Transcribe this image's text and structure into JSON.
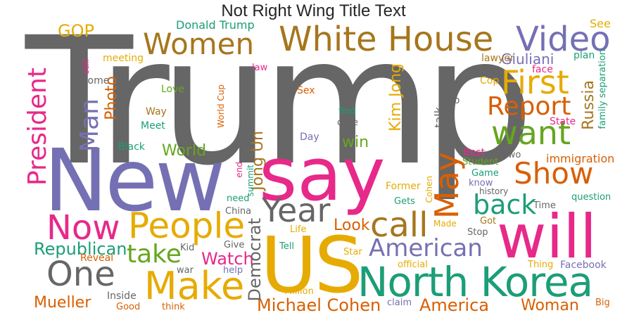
{
  "title": "Not Right Wing Title Text",
  "palette": {
    "gray": "#666666",
    "purple": "#7570b3",
    "magenta": "#e7298a",
    "gold": "#e6ab02",
    "brown": "#a6761d",
    "orange": "#d95f02",
    "teal": "#1b9e77",
    "green": "#66a61e"
  },
  "words": [
    {
      "text": "Trump",
      "color": "gray"
    },
    {
      "text": "New",
      "color": "purple"
    },
    {
      "text": "say",
      "color": "magenta"
    },
    {
      "text": "US",
      "color": "gold"
    },
    {
      "text": "will",
      "color": "magenta"
    },
    {
      "text": "North Korea",
      "color": "teal"
    },
    {
      "text": "White House",
      "color": "brown"
    },
    {
      "text": "Women",
      "color": "brown"
    },
    {
      "text": "Video",
      "color": "purple"
    },
    {
      "text": "First",
      "color": "gold"
    },
    {
      "text": "want",
      "color": "green"
    },
    {
      "text": "Report",
      "color": "orange"
    },
    {
      "text": "Show",
      "color": "orange"
    },
    {
      "text": "May",
      "color": "orange"
    },
    {
      "text": "back",
      "color": "teal"
    },
    {
      "text": "call",
      "color": "brown"
    },
    {
      "text": "Year",
      "color": "gray"
    },
    {
      "text": "People",
      "color": "gold"
    },
    {
      "text": "Now",
      "color": "magenta"
    },
    {
      "text": "Make",
      "color": "gold"
    },
    {
      "text": "One",
      "color": "gray"
    },
    {
      "text": "take",
      "color": "green"
    },
    {
      "text": "American",
      "color": "purple"
    },
    {
      "text": "President",
      "color": "magenta"
    },
    {
      "text": "Man",
      "color": "purple"
    },
    {
      "text": "Republican",
      "color": "teal"
    },
    {
      "text": "Michael Cohen",
      "color": "orange"
    },
    {
      "text": "America",
      "color": "orange"
    },
    {
      "text": "Mueller",
      "color": "orange"
    },
    {
      "text": "Woman",
      "color": "orange"
    },
    {
      "text": "Watch",
      "color": "magenta"
    },
    {
      "text": "Democrat",
      "color": "gray"
    },
    {
      "text": "GOP",
      "color": "gold"
    },
    {
      "text": "Donald Trump",
      "color": "teal"
    },
    {
      "text": "Giuliani",
      "color": "purple"
    },
    {
      "text": "Russia",
      "color": "brown"
    },
    {
      "text": "World",
      "color": "green"
    },
    {
      "text": "Jong Un",
      "color": "brown"
    },
    {
      "text": "Kim Jong",
      "color": "gold"
    },
    {
      "text": "Photo",
      "color": "orange"
    },
    {
      "text": "Look",
      "color": "orange"
    },
    {
      "text": "win",
      "color": "green"
    },
    {
      "text": "immigration",
      "color": "orange"
    },
    {
      "text": "See",
      "color": "gold"
    },
    {
      "text": "plan",
      "color": "teal"
    },
    {
      "text": "lawyer",
      "color": "brown"
    },
    {
      "text": "face",
      "color": "magenta"
    },
    {
      "text": "family separation",
      "color": "teal"
    },
    {
      "text": "State",
      "color": "magenta"
    },
    {
      "text": "Cop",
      "color": "gold"
    },
    {
      "text": "job",
      "color": "gray"
    },
    {
      "text": "talk",
      "color": "gray"
    },
    {
      "text": "meeting",
      "color": "gold"
    },
    {
      "text": "still",
      "color": "magenta"
    },
    {
      "text": "Home",
      "color": "gray"
    },
    {
      "text": "law",
      "color": "magenta"
    },
    {
      "text": "Love",
      "color": "green"
    },
    {
      "text": "Sex",
      "color": "orange"
    },
    {
      "text": "Way",
      "color": "brown"
    },
    {
      "text": "Meet",
      "color": "teal"
    },
    {
      "text": "World Cup",
      "color": "orange"
    },
    {
      "text": "find",
      "color": "teal"
    },
    {
      "text": "case",
      "color": "gray"
    },
    {
      "text": "Day",
      "color": "purple"
    },
    {
      "text": "Black",
      "color": "teal"
    },
    {
      "text": "Best",
      "color": "magenta"
    },
    {
      "text": "Student",
      "color": "green"
    },
    {
      "text": "Two",
      "color": "gray"
    },
    {
      "text": "Game",
      "color": "teal"
    },
    {
      "text": "know",
      "color": "purple"
    },
    {
      "text": "history",
      "color": "gray"
    },
    {
      "text": "question",
      "color": "teal"
    },
    {
      "text": "Time",
      "color": "gray"
    },
    {
      "text": "end",
      "color": "magenta"
    },
    {
      "text": "summit",
      "color": "teal"
    },
    {
      "text": "need",
      "color": "teal"
    },
    {
      "text": "China",
      "color": "gray"
    },
    {
      "text": "Former",
      "color": "gold"
    },
    {
      "text": "Cohen",
      "color": "gold"
    },
    {
      "text": "Gets",
      "color": "teal"
    },
    {
      "text": "Made",
      "color": "gold"
    },
    {
      "text": "Got",
      "color": "brown"
    },
    {
      "text": "Stop",
      "color": "gray"
    },
    {
      "text": "Life",
      "color": "gold"
    },
    {
      "text": "Kid",
      "color": "gray"
    },
    {
      "text": "Give",
      "color": "gray"
    },
    {
      "text": "Tell",
      "color": "teal"
    },
    {
      "text": "Star",
      "color": "gold"
    },
    {
      "text": "Reveal",
      "color": "orange"
    },
    {
      "text": "help",
      "color": "purple"
    },
    {
      "text": "war",
      "color": "gray"
    },
    {
      "text": "official",
      "color": "gold"
    },
    {
      "text": "Thing",
      "color": "gold"
    },
    {
      "text": "Facebook",
      "color": "purple"
    },
    {
      "text": "Million",
      "color": "gold"
    },
    {
      "text": "Inside",
      "color": "gray"
    },
    {
      "text": "Good",
      "color": "orange"
    },
    {
      "text": "think",
      "color": "orange"
    },
    {
      "text": "claim",
      "color": "purple"
    },
    {
      "text": "Big",
      "color": "orange"
    }
  ]
}
